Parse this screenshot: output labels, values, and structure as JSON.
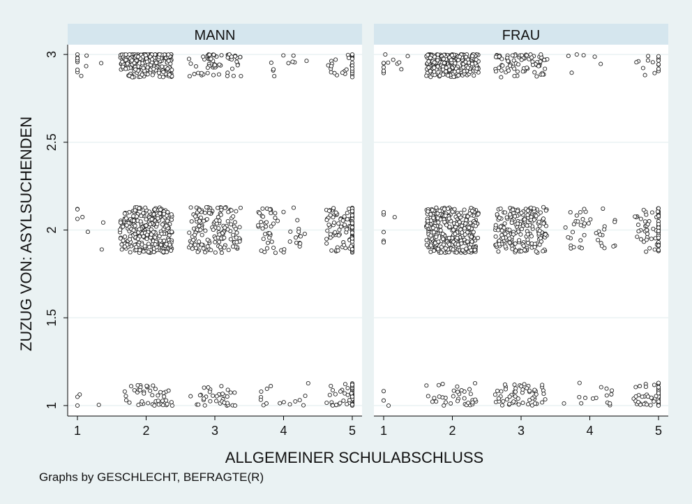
{
  "colors": {
    "background": "#eaf2f3",
    "panel_header": "#d5e6ee",
    "plot_area": "#ffffff",
    "gridline": "#eaf2f3",
    "marker_stroke": "#222222",
    "marker_fill": "#ffffff"
  },
  "footnote": "Graphs by GESCHLECHT, BEFRAGTE(R)",
  "chart_data": {
    "type": "scatter",
    "jitter": true,
    "xlabel": "ALLGEMEINER SCHULABSCHLUSS",
    "ylabel": "ZUZUG VON: ASYLSUCHENDEN",
    "xlim": [
      1,
      5
    ],
    "ylim": [
      1,
      3
    ],
    "xticks": [
      1,
      2,
      3,
      4,
      5
    ],
    "yticks": [
      1,
      1.5,
      2,
      2.5,
      3
    ],
    "xtick_labels": [
      "1",
      "2",
      "3",
      "4",
      "5"
    ],
    "ytick_labels": [
      "1",
      "1.5",
      "2",
      "2.5",
      "3"
    ],
    "grid": true,
    "panels": [
      {
        "title": "MANN",
        "groups": [
          {
            "x": 1,
            "y": 1,
            "n": 4
          },
          {
            "x": 1,
            "y": 2,
            "n": 7
          },
          {
            "x": 1,
            "y": 3,
            "n": 11
          },
          {
            "x": 2,
            "y": 1,
            "n": 45
          },
          {
            "x": 2,
            "y": 2,
            "n": 300
          },
          {
            "x": 2,
            "y": 3,
            "n": 240
          },
          {
            "x": 3,
            "y": 1,
            "n": 35
          },
          {
            "x": 3,
            "y": 2,
            "n": 150
          },
          {
            "x": 3,
            "y": 3,
            "n": 60
          },
          {
            "x": 4,
            "y": 1,
            "n": 15
          },
          {
            "x": 4,
            "y": 2,
            "n": 55
          },
          {
            "x": 4,
            "y": 3,
            "n": 10
          },
          {
            "x": 5,
            "y": 1,
            "n": 60
          },
          {
            "x": 5,
            "y": 2,
            "n": 130
          },
          {
            "x": 5,
            "y": 3,
            "n": 30
          }
        ]
      },
      {
        "title": "FRAU",
        "groups": [
          {
            "x": 1,
            "y": 1,
            "n": 3
          },
          {
            "x": 1,
            "y": 2,
            "n": 6
          },
          {
            "x": 1,
            "y": 3,
            "n": 14
          },
          {
            "x": 2,
            "y": 1,
            "n": 35
          },
          {
            "x": 2,
            "y": 2,
            "n": 330
          },
          {
            "x": 2,
            "y": 3,
            "n": 260
          },
          {
            "x": 3,
            "y": 1,
            "n": 55
          },
          {
            "x": 3,
            "y": 2,
            "n": 190
          },
          {
            "x": 3,
            "y": 3,
            "n": 85
          },
          {
            "x": 4,
            "y": 1,
            "n": 15
          },
          {
            "x": 4,
            "y": 2,
            "n": 40
          },
          {
            "x": 4,
            "y": 3,
            "n": 6
          },
          {
            "x": 5,
            "y": 1,
            "n": 60
          },
          {
            "x": 5,
            "y": 2,
            "n": 75
          },
          {
            "x": 5,
            "y": 3,
            "n": 16
          }
        ]
      }
    ]
  }
}
